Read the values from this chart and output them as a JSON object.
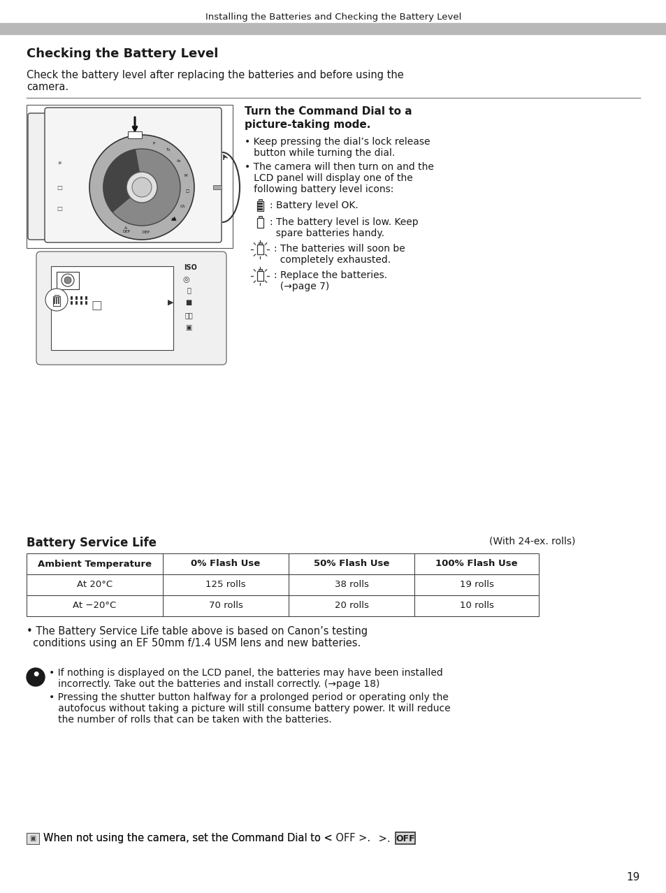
{
  "bg_color": "#ffffff",
  "header_text": "Installing the Batteries and Checking the Battery Level",
  "header_bar_color": "#b8b8b8",
  "section_title": "Checking the Battery Level",
  "intro_line1": "Check the battery level after replacing the batteries and before using the",
  "intro_line2": "camera.",
  "step_title_line1": "Turn the Command Dial to a",
  "step_title_line2": "picture-taking mode.",
  "b1l1": "• Keep pressing the dial’s lock release",
  "b1l2": "   button while turning the dial.",
  "b2l1": "• The camera will then turn on and the",
  "b2l2": "   LCD panel will display one of the",
  "b2l3": "   following battery level icons:",
  "icon1_text": ": Battery level OK.",
  "icon2l1": ": The battery level is low. Keep",
  "icon2l2": "  spare batteries handy.",
  "icon3l1": ": The batteries will soon be",
  "icon3l2": "  completely exhausted.",
  "icon4l1": ": Replace the batteries.",
  "icon4l2": "  (→page 7)",
  "batt_title": "Battery Service Life",
  "batt_sub": "(With 24-ex. rolls)",
  "th0": "Ambient Temperature",
  "th1": "0% Flash Use",
  "th2": "50% Flash Use",
  "th3": "100% Flash Use",
  "r1c0": "At 20°C",
  "r1c1": "125 rolls",
  "r1c2": "38 rolls",
  "r1c3": "19 rolls",
  "r2c0": "At −20°C",
  "r2c1": "70 rolls",
  "r2c2": "20 rolls",
  "r2c3": "10 rolls",
  "note1": "• The Battery Service Life table above is based on Canon’s testing",
  "note2": "  conditions using an EF 50mm f/1.4 USM lens and new batteries.",
  "w1": "• If nothing is displayed on the LCD panel, the batteries may have been installed",
  "w2": "   incorrectly. Take out the batteries and install correctly. (→page 18)",
  "w3": "• Pressing the shutter button halfway for a prolonged period or operating only the",
  "w4": "   autofocus without taking a picture will still consume battery power. It will reduce",
  "w5": "   the number of rolls that can be taken with the batteries.",
  "footer": "When not using the camera, set the Command Dial to < OFF >.",
  "page_num": "19",
  "tc": "#1a1a1a",
  "lm": 38,
  "rm": 916
}
